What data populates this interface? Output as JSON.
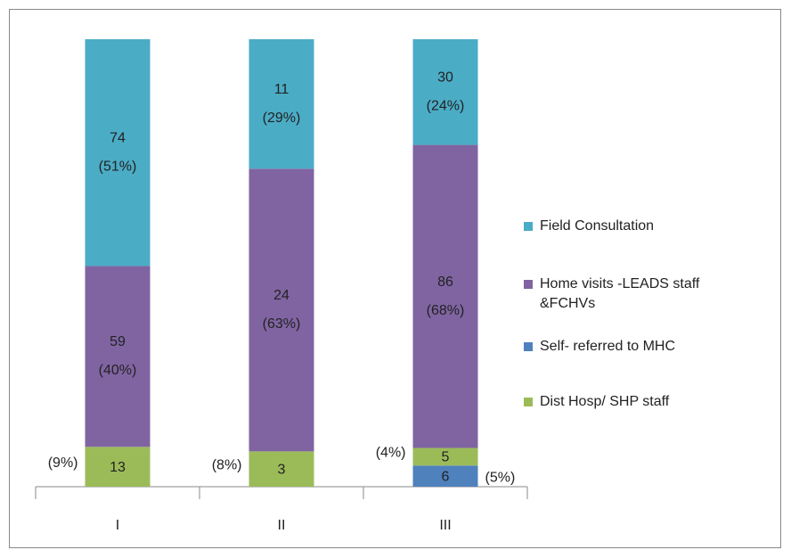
{
  "chart_data": {
    "type": "stacked-percent-bar",
    "categories": [
      "I",
      "II",
      "III"
    ],
    "series": [
      {
        "name": "Self- referred to MHC",
        "color": "#4f81bd",
        "values": [
          null,
          null,
          6
        ],
        "percents": [
          null,
          null,
          5
        ],
        "percent_labels": [
          null,
          null,
          "(5%)"
        ]
      },
      {
        "name": "Dist Hosp/ SHP staff",
        "color": "#9bbb59",
        "values": [
          13,
          3,
          5
        ],
        "percents": [
          9,
          8,
          4
        ],
        "percent_labels": [
          "(9%)",
          "(8%)",
          "(4%)"
        ]
      },
      {
        "name": "Home visits -LEADS staff &FCHVs",
        "color": "#8064a2",
        "values": [
          59,
          24,
          86
        ],
        "percents": [
          40,
          63,
          68
        ],
        "percent_labels": [
          "(40%)",
          "(63%)",
          "(68%)"
        ]
      },
      {
        "name": "Field Consultation",
        "color": "#4bacc6",
        "values": [
          74,
          11,
          30
        ],
        "percents": [
          51,
          29,
          24
        ],
        "percent_labels": [
          "(51%)",
          "(29%)",
          "(24%)"
        ]
      }
    ]
  }
}
